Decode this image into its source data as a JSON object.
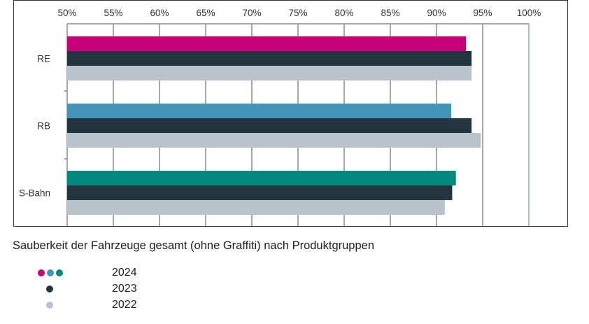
{
  "chart_data": {
    "type": "bar",
    "orientation": "horizontal",
    "title": "Sauberkeit der Fahrzeuge gesamt (ohne Graffiti) nach Produktgruppen",
    "categories": [
      "RE",
      "RB",
      "S-Bahn"
    ],
    "xlim": [
      50,
      100
    ],
    "xticks": [
      "50%",
      "55%",
      "60%",
      "65%",
      "70%",
      "75%",
      "80%",
      "85%",
      "90%",
      "95%",
      "100%"
    ],
    "grid": true,
    "series": [
      {
        "name": "2024",
        "values": [
          93.2,
          91.6,
          92.1
        ],
        "colors": [
          "#c8007a",
          "#4395b8",
          "#008a7d"
        ]
      },
      {
        "name": "2023",
        "values": [
          93.8,
          93.8,
          91.7
        ],
        "color": "#233640"
      },
      {
        "name": "2022",
        "values": [
          93.8,
          94.8,
          90.9
        ],
        "color": "#b9c3cb"
      }
    ]
  },
  "legend": {
    "entries": [
      {
        "label": "2024",
        "dot_colors": [
          "#c8007a",
          "#4395b8",
          "#008a7d"
        ]
      },
      {
        "label": "2023",
        "dot_colors": [
          "#233640"
        ]
      },
      {
        "label": "2022",
        "dot_colors": [
          "#b9c3cb"
        ]
      }
    ]
  }
}
